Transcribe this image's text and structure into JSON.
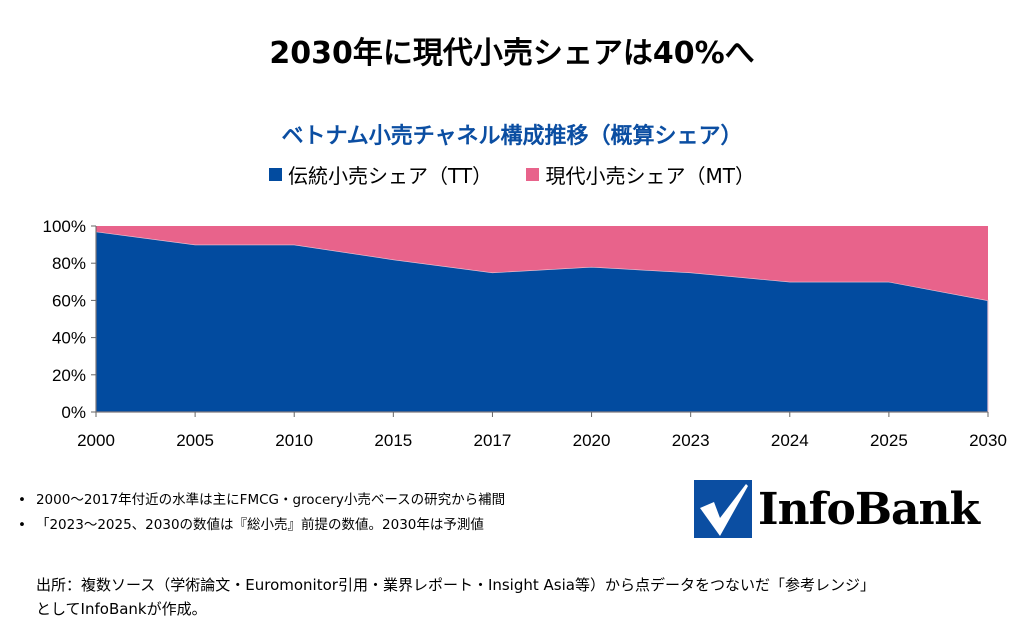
{
  "main_title": "2030年に現代小売シェアは40%へ",
  "chart_data": {
    "type": "area",
    "stacked": true,
    "title": "ベトナム小売チャネル構成推移（概算シェア）",
    "categories": [
      "2000",
      "2005",
      "2010",
      "2015",
      "2017",
      "2020",
      "2023",
      "2024",
      "2025",
      "2030"
    ],
    "series": [
      {
        "name": "伝統小売シェア（TT）",
        "color": "#024b9f",
        "values": [
          97,
          90,
          90,
          82,
          75,
          78,
          75,
          70,
          70,
          60
        ]
      },
      {
        "name": "現代小売シェア（MT）",
        "color": "#e8638b",
        "values": [
          3,
          10,
          10,
          18,
          25,
          22,
          25,
          30,
          30,
          40
        ]
      }
    ],
    "ylim": [
      0,
      100
    ],
    "yticks": [
      "0%",
      "20%",
      "40%",
      "60%",
      "80%",
      "100%"
    ],
    "legend": "top-center",
    "grid": false
  },
  "notes": [
    "2000～2017年付近の水準は主にFMCG・grocery小売ベースの研究から補間",
    "「2023～2025、2030の数値は『総小売』前提の数値。2030年は予測値"
  ],
  "source": [
    "出所：複数ソース（学術論文・Euromonitor引用・業界レポート・Insight Asia等）から点データをつないだ「参考レンジ」",
    "としてInfoBankが作成。"
  ],
  "logo_text": "InfoBank"
}
